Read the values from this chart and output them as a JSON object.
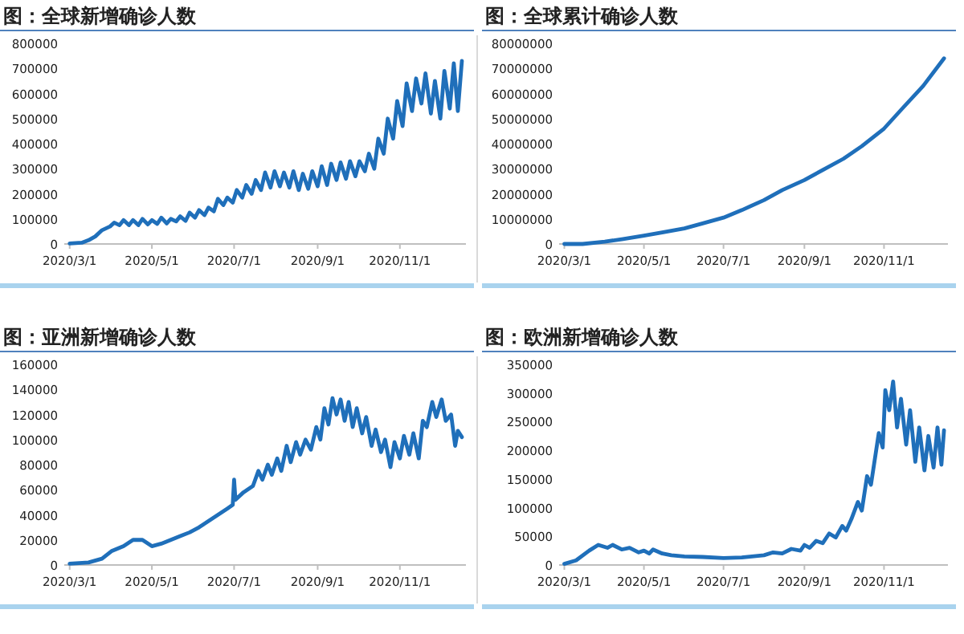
{
  "chart_data": [
    {
      "type": "line",
      "title": "图：全球新增确诊人数",
      "color": "#1f6fba",
      "xlim": [
        "2020-02-26",
        "2020-12-20"
      ],
      "ylim": [
        0,
        800000
      ],
      "xticks": [
        {
          "value": "2020-03-01",
          "label": "2020/3/1"
        },
        {
          "value": "2020-05-01",
          "label": "2020/5/1"
        },
        {
          "value": "2020-07-01",
          "label": "2020/7/1"
        },
        {
          "value": "2020-09-01",
          "label": "2020/9/1"
        },
        {
          "value": "2020-11-01",
          "label": "2020/11/1"
        }
      ],
      "yticks": [
        0,
        100000,
        200000,
        300000,
        400000,
        500000,
        600000,
        700000,
        800000
      ],
      "x": [
        "2020-03-01",
        "2020-03-10",
        "2020-03-15",
        "2020-03-20",
        "2020-03-25",
        "2020-03-31",
        "2020-04-03",
        "2020-04-07",
        "2020-04-10",
        "2020-04-14",
        "2020-04-17",
        "2020-04-21",
        "2020-04-24",
        "2020-04-28",
        "2020-05-01",
        "2020-05-05",
        "2020-05-08",
        "2020-05-12",
        "2020-05-15",
        "2020-05-19",
        "2020-05-22",
        "2020-05-26",
        "2020-05-29",
        "2020-06-02",
        "2020-06-05",
        "2020-06-09",
        "2020-06-12",
        "2020-06-16",
        "2020-06-19",
        "2020-06-23",
        "2020-06-26",
        "2020-06-30",
        "2020-07-03",
        "2020-07-07",
        "2020-07-10",
        "2020-07-14",
        "2020-07-17",
        "2020-07-21",
        "2020-07-24",
        "2020-07-28",
        "2020-07-31",
        "2020-08-04",
        "2020-08-07",
        "2020-08-11",
        "2020-08-14",
        "2020-08-18",
        "2020-08-21",
        "2020-08-25",
        "2020-08-28",
        "2020-09-01",
        "2020-09-04",
        "2020-09-08",
        "2020-09-11",
        "2020-09-15",
        "2020-09-18",
        "2020-09-22",
        "2020-09-25",
        "2020-09-29",
        "2020-10-02",
        "2020-10-06",
        "2020-10-09",
        "2020-10-13",
        "2020-10-16",
        "2020-10-20",
        "2020-10-23",
        "2020-10-27",
        "2020-10-30",
        "2020-11-03",
        "2020-11-06",
        "2020-11-10",
        "2020-11-13",
        "2020-11-17",
        "2020-11-20",
        "2020-11-24",
        "2020-11-27",
        "2020-12-01",
        "2020-12-04",
        "2020-12-08",
        "2020-12-11",
        "2020-12-14",
        "2020-12-17"
      ],
      "values": [
        2000,
        5000,
        15000,
        30000,
        55000,
        70000,
        85000,
        75000,
        95000,
        75000,
        95000,
        75000,
        100000,
        78000,
        95000,
        80000,
        105000,
        82000,
        100000,
        90000,
        110000,
        92000,
        125000,
        105000,
        135000,
        115000,
        145000,
        130000,
        180000,
        155000,
        185000,
        165000,
        215000,
        185000,
        235000,
        200000,
        255000,
        215000,
        285000,
        225000,
        290000,
        230000,
        285000,
        225000,
        290000,
        215000,
        280000,
        220000,
        290000,
        230000,
        310000,
        235000,
        320000,
        255000,
        325000,
        260000,
        330000,
        270000,
        330000,
        290000,
        360000,
        300000,
        420000,
        360000,
        500000,
        420000,
        570000,
        470000,
        640000,
        530000,
        660000,
        560000,
        680000,
        520000,
        650000,
        500000,
        690000,
        540000,
        720000,
        530000,
        730000
      ]
    },
    {
      "type": "line",
      "title": "图：全球累计确诊人数",
      "color": "#1f6fba",
      "xlim": [
        "2020-02-26",
        "2020-12-20"
      ],
      "ylim": [
        0,
        80000000
      ],
      "xticks": [
        {
          "value": "2020-03-01",
          "label": "2020/3/1"
        },
        {
          "value": "2020-05-01",
          "label": "2020/5/1"
        },
        {
          "value": "2020-07-01",
          "label": "2020/7/1"
        },
        {
          "value": "2020-09-01",
          "label": "2020/9/1"
        },
        {
          "value": "2020-11-01",
          "label": "2020/11/1"
        }
      ],
      "yticks": [
        0,
        10000000,
        20000000,
        30000000,
        40000000,
        50000000,
        60000000,
        70000000,
        80000000
      ],
      "x": [
        "2020-03-01",
        "2020-03-15",
        "2020-04-01",
        "2020-04-15",
        "2020-05-01",
        "2020-05-15",
        "2020-06-01",
        "2020-06-15",
        "2020-07-01",
        "2020-07-15",
        "2020-08-01",
        "2020-08-15",
        "2020-09-01",
        "2020-09-15",
        "2020-10-01",
        "2020-10-15",
        "2020-11-01",
        "2020-11-15",
        "2020-12-01",
        "2020-12-17"
      ],
      "values": [
        0,
        0,
        900000,
        2000000,
        3300000,
        4600000,
        6200000,
        8200000,
        10500000,
        13500000,
        17500000,
        21500000,
        25500000,
        29500000,
        34000000,
        39000000,
        46000000,
        54000000,
        63000000,
        74000000
      ]
    },
    {
      "type": "line",
      "title": "图：亚洲新增确诊人数",
      "color": "#1f6fba",
      "xlim": [
        "2020-02-26",
        "2020-12-20"
      ],
      "ylim": [
        0,
        160000
      ],
      "xticks": [
        {
          "value": "2020-03-01",
          "label": "2020/3/1"
        },
        {
          "value": "2020-05-01",
          "label": "2020/5/1"
        },
        {
          "value": "2020-07-01",
          "label": "2020/7/1"
        },
        {
          "value": "2020-09-01",
          "label": "2020/9/1"
        },
        {
          "value": "2020-11-01",
          "label": "2020/11/1"
        }
      ],
      "yticks": [
        0,
        20000,
        40000,
        60000,
        80000,
        100000,
        120000,
        140000,
        160000
      ],
      "x": [
        "2020-03-01",
        "2020-03-15",
        "2020-03-25",
        "2020-04-01",
        "2020-04-10",
        "2020-04-17",
        "2020-04-24",
        "2020-05-01",
        "2020-05-08",
        "2020-05-15",
        "2020-05-22",
        "2020-05-29",
        "2020-06-05",
        "2020-06-12",
        "2020-06-19",
        "2020-06-26",
        "2020-06-30",
        "2020-07-01",
        "2020-07-02",
        "2020-07-08",
        "2020-07-15",
        "2020-07-19",
        "2020-07-22",
        "2020-07-26",
        "2020-07-29",
        "2020-08-02",
        "2020-08-05",
        "2020-08-09",
        "2020-08-12",
        "2020-08-16",
        "2020-08-19",
        "2020-08-23",
        "2020-08-27",
        "2020-08-31",
        "2020-09-03",
        "2020-09-06",
        "2020-09-09",
        "2020-09-12",
        "2020-09-15",
        "2020-09-18",
        "2020-09-21",
        "2020-09-24",
        "2020-09-27",
        "2020-09-30",
        "2020-10-04",
        "2020-10-07",
        "2020-10-11",
        "2020-10-14",
        "2020-10-18",
        "2020-10-21",
        "2020-10-25",
        "2020-10-28",
        "2020-11-01",
        "2020-11-04",
        "2020-11-08",
        "2020-11-11",
        "2020-11-15",
        "2020-11-18",
        "2020-11-21",
        "2020-11-25",
        "2020-11-28",
        "2020-12-02",
        "2020-12-05",
        "2020-12-09",
        "2020-12-12",
        "2020-12-14",
        "2020-12-17"
      ],
      "values": [
        1000,
        2000,
        5000,
        11000,
        15000,
        20000,
        20000,
        15000,
        17000,
        20000,
        23000,
        26000,
        30000,
        35000,
        40000,
        45000,
        48000,
        68000,
        52000,
        58000,
        63000,
        75000,
        68000,
        80000,
        72000,
        85000,
        75000,
        95000,
        82000,
        98000,
        88000,
        100000,
        92000,
        110000,
        100000,
        125000,
        112000,
        133000,
        120000,
        132000,
        115000,
        130000,
        110000,
        125000,
        105000,
        118000,
        95000,
        108000,
        90000,
        100000,
        78000,
        98000,
        85000,
        103000,
        88000,
        105000,
        85000,
        115000,
        110000,
        130000,
        118000,
        132000,
        115000,
        120000,
        95000,
        107000,
        102000
      ]
    },
    {
      "type": "line",
      "title": "图：欧洲新增确诊人数",
      "color": "#1f6fba",
      "xlim": [
        "2020-02-26",
        "2020-12-20"
      ],
      "ylim": [
        0,
        350000
      ],
      "xticks": [
        {
          "value": "2020-03-01",
          "label": "2020/3/1"
        },
        {
          "value": "2020-05-01",
          "label": "2020/5/1"
        },
        {
          "value": "2020-07-01",
          "label": "2020/7/1"
        },
        {
          "value": "2020-09-01",
          "label": "2020/9/1"
        },
        {
          "value": "2020-11-01",
          "label": "2020/11/1"
        }
      ],
      "yticks": [
        0,
        50000,
        100000,
        150000,
        200000,
        250000,
        300000,
        350000
      ],
      "x": [
        "2020-03-01",
        "2020-03-10",
        "2020-03-20",
        "2020-03-27",
        "2020-04-03",
        "2020-04-07",
        "2020-04-14",
        "2020-04-20",
        "2020-04-27",
        "2020-05-01",
        "2020-05-05",
        "2020-05-08",
        "2020-05-15",
        "2020-05-22",
        "2020-06-01",
        "2020-06-15",
        "2020-07-01",
        "2020-07-15",
        "2020-08-01",
        "2020-08-08",
        "2020-08-15",
        "2020-08-22",
        "2020-08-29",
        "2020-09-01",
        "2020-09-05",
        "2020-09-10",
        "2020-09-15",
        "2020-09-20",
        "2020-09-25",
        "2020-09-30",
        "2020-10-03",
        "2020-10-07",
        "2020-10-12",
        "2020-10-15",
        "2020-10-19",
        "2020-10-22",
        "2020-10-26",
        "2020-10-28",
        "2020-10-31",
        "2020-11-02",
        "2020-11-05",
        "2020-11-08",
        "2020-11-11",
        "2020-11-14",
        "2020-11-18",
        "2020-11-21",
        "2020-11-25",
        "2020-11-28",
        "2020-12-02",
        "2020-12-05",
        "2020-12-09",
        "2020-12-12",
        "2020-12-15",
        "2020-12-17"
      ],
      "values": [
        2000,
        8000,
        25000,
        35000,
        30000,
        35000,
        27000,
        30000,
        22000,
        25000,
        20000,
        27000,
        20000,
        17000,
        15000,
        14000,
        12000,
        13000,
        17000,
        22000,
        20000,
        28000,
        25000,
        35000,
        30000,
        42000,
        38000,
        55000,
        48000,
        68000,
        60000,
        80000,
        110000,
        95000,
        155000,
        140000,
        200000,
        230000,
        205000,
        305000,
        270000,
        320000,
        240000,
        290000,
        210000,
        270000,
        180000,
        240000,
        165000,
        225000,
        170000,
        240000,
        175000,
        235000
      ]
    }
  ]
}
